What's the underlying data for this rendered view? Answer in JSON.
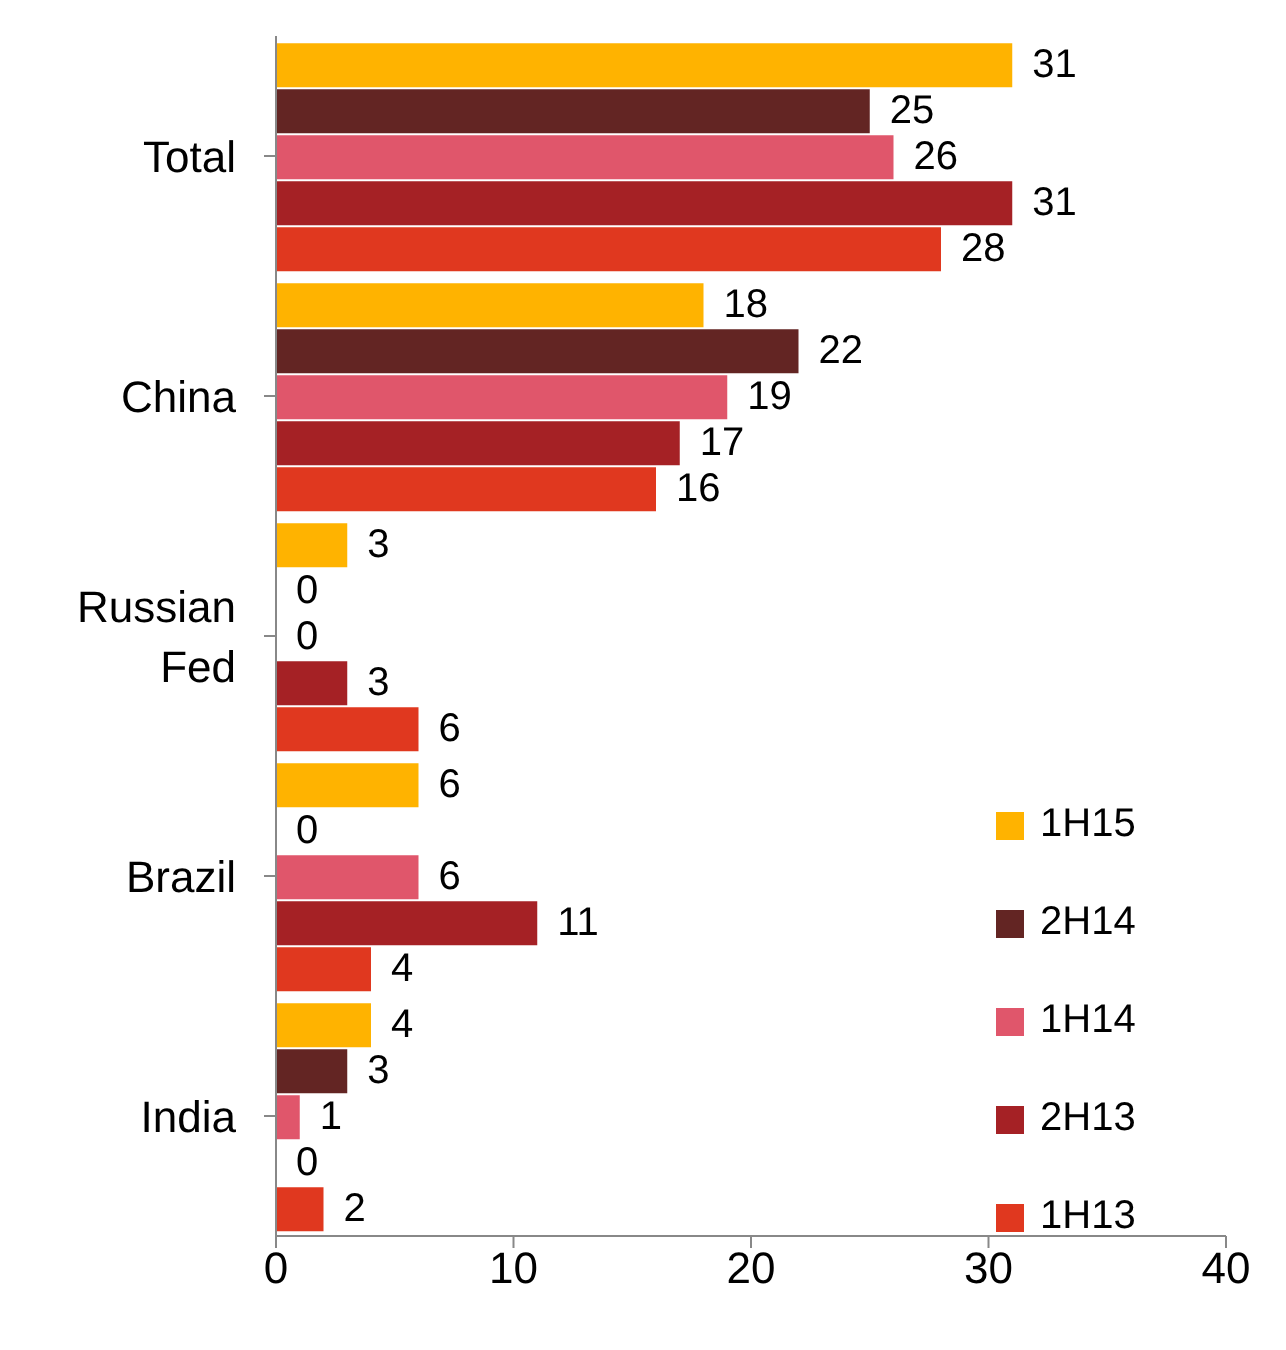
{
  "chart_data": {
    "type": "bar",
    "orientation": "horizontal",
    "categories": [
      "Total",
      "China",
      "Russian Fed",
      "Brazil",
      "India"
    ],
    "series": [
      {
        "name": "1H15",
        "color": "#ffb300",
        "values": [
          31,
          18,
          3,
          6,
          4
        ]
      },
      {
        "name": "2H14",
        "color": "#632523",
        "values": [
          25,
          22,
          0,
          0,
          3
        ]
      },
      {
        "name": "1H14",
        "color": "#e0566b",
        "values": [
          26,
          19,
          0,
          6,
          1
        ]
      },
      {
        "name": "2H13",
        "color": "#a52125",
        "values": [
          31,
          17,
          3,
          11,
          0
        ]
      },
      {
        "name": "1H13",
        "color": "#e0381f",
        "values": [
          28,
          16,
          6,
          4,
          2
        ]
      }
    ],
    "xlim": [
      0,
      40
    ],
    "xticks": [
      0,
      10,
      20,
      30,
      40
    ],
    "data_labels": true,
    "grid": false,
    "legend": "bottom right"
  }
}
